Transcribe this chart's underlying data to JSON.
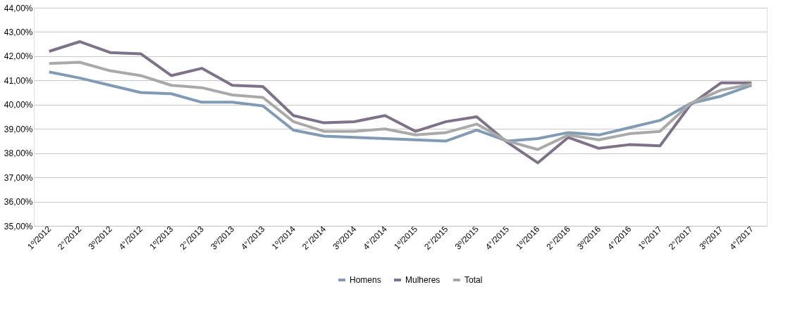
{
  "chart_data": {
    "type": "line",
    "categories": [
      "1º/2012",
      "2°/2012",
      "3º/2012",
      "4°/2012",
      "1º/2013",
      "2°/2013",
      "3º/2013",
      "4°/2013",
      "1º/2014",
      "2°/2014",
      "3º/2014",
      "4°/2014",
      "1º/2015",
      "2°/2015",
      "3º/2015",
      "4°/2015",
      "1º/2016",
      "2°/2016",
      "3º/2016",
      "4°/2016",
      "1º/2017",
      "2°/2017",
      "3º/2017",
      "4°/2017"
    ],
    "series": [
      {
        "name": "Homens",
        "color": "#7f9bb5",
        "values": [
          41.35,
          41.1,
          40.8,
          40.5,
          40.45,
          40.1,
          40.1,
          39.95,
          38.95,
          38.7,
          38.65,
          38.6,
          38.55,
          38.5,
          38.95,
          38.5,
          38.6,
          38.85,
          38.75,
          39.05,
          39.35,
          40.05,
          40.35,
          40.8
        ]
      },
      {
        "name": "Mulheres",
        "color": "#7f7189",
        "values": [
          42.2,
          42.6,
          42.15,
          42.1,
          41.2,
          41.5,
          40.8,
          40.75,
          39.55,
          39.25,
          39.3,
          39.55,
          38.9,
          39.3,
          39.5,
          38.45,
          37.6,
          38.65,
          38.2,
          38.35,
          38.3,
          40.0,
          40.9,
          40.9
        ]
      },
      {
        "name": "Total",
        "color": "#a9a9a9",
        "values": [
          41.7,
          41.75,
          41.4,
          41.2,
          40.8,
          40.7,
          40.4,
          40.3,
          39.3,
          38.9,
          38.9,
          39.0,
          38.75,
          38.85,
          39.2,
          38.5,
          38.15,
          38.75,
          38.55,
          38.8,
          38.9,
          40.05,
          40.6,
          40.85
        ]
      }
    ],
    "ylim": [
      35,
      44
    ],
    "yticks": [
      {
        "value": 35,
        "label": "35,00%"
      },
      {
        "value": 36,
        "label": "36,00%"
      },
      {
        "value": 37,
        "label": "37,00%"
      },
      {
        "value": 38,
        "label": "38,00%"
      },
      {
        "value": 39,
        "label": "39,00%"
      },
      {
        "value": 40,
        "label": "40,00%"
      },
      {
        "value": 41,
        "label": "41,00%"
      },
      {
        "value": 42,
        "label": "42,00%"
      },
      {
        "value": 43,
        "label": "43,00%"
      },
      {
        "value": 44,
        "label": "44,00%"
      }
    ],
    "grid": "y",
    "legend": "bottom",
    "marker": "none",
    "line_style": "solid"
  }
}
